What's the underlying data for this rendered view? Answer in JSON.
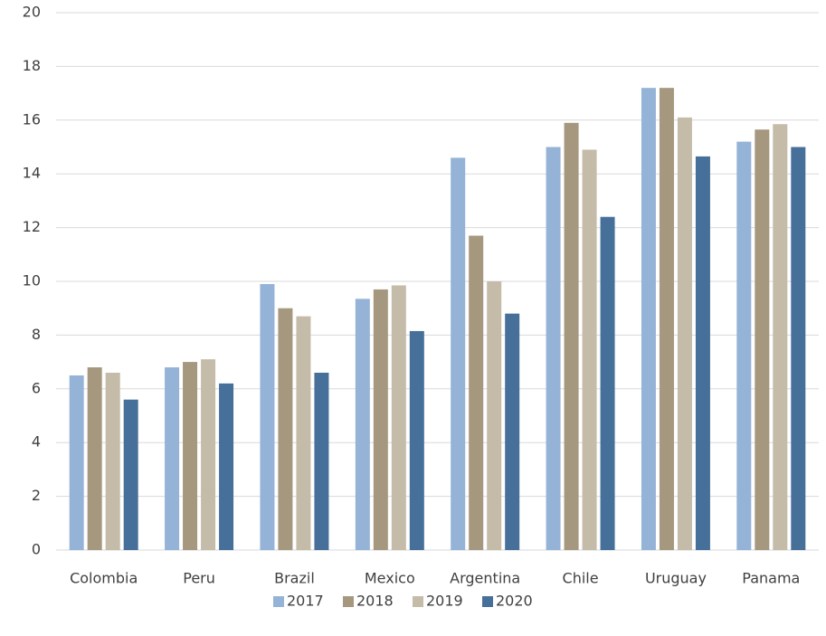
{
  "chart_data": {
    "type": "bar",
    "categories": [
      "Colombia",
      "Peru",
      "Brazil",
      "Mexico",
      "Argentina",
      "Chile",
      "Uruguay",
      "Panama"
    ],
    "series": [
      {
        "name": "2017",
        "color": "#95b3d7",
        "values": [
          6.5,
          6.8,
          9.9,
          9.35,
          14.6,
          15.0,
          17.2,
          15.2
        ]
      },
      {
        "name": "2018",
        "color": "#a6977f",
        "values": [
          6.8,
          7.0,
          9.0,
          9.7,
          11.7,
          15.9,
          17.2,
          15.65
        ]
      },
      {
        "name": "2019",
        "color": "#c4bba9",
        "values": [
          6.6,
          7.1,
          8.7,
          9.85,
          10.0,
          14.9,
          16.1,
          15.85
        ]
      },
      {
        "name": "2020",
        "color": "#46709a",
        "values": [
          5.6,
          6.2,
          6.6,
          8.15,
          8.8,
          12.4,
          14.65,
          15.0
        ]
      }
    ],
    "ylim": [
      0,
      20
    ],
    "yticks": [
      0,
      2,
      4,
      6,
      8,
      10,
      12,
      14,
      16,
      18,
      20
    ],
    "grid": true,
    "legend": "bottom"
  }
}
